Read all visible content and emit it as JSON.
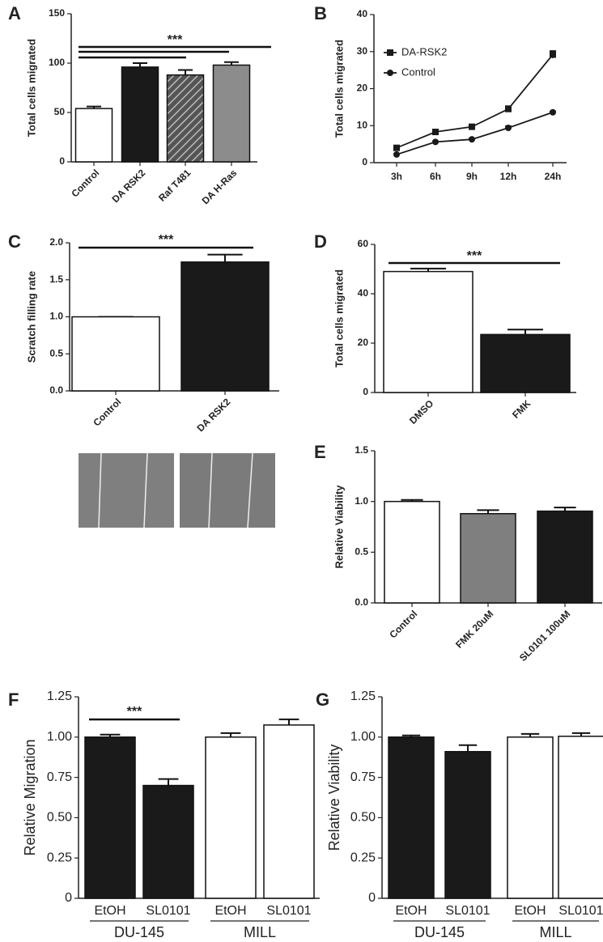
{
  "chart_data": [
    {
      "type": "bar",
      "label": "A",
      "ylabel": "Total cells migrated",
      "categories": [
        "Control",
        "DA RSK2",
        "Raf T481",
        "DA H-Ras"
      ],
      "values": [
        54,
        96,
        88,
        98
      ],
      "errors": [
        2,
        4,
        5,
        3
      ],
      "colors": [
        "#ffffff",
        "#1a1a1a",
        "#7f7f7f",
        "#8c8c8c"
      ],
      "hatch": [
        false,
        false,
        true,
        false
      ],
      "ylim": [
        0,
        150
      ],
      "yticks": [
        0,
        50,
        100,
        150
      ],
      "significance": {
        "label": "***",
        "pairs": [
          [
            0,
            3
          ],
          [
            0,
            2
          ],
          [
            0,
            1
          ]
        ]
      }
    },
    {
      "type": "line",
      "label": "B",
      "ylabel": "Total cells migrated",
      "categories": [
        "3h",
        "6h",
        "9h",
        "12h",
        "24h"
      ],
      "series": [
        {
          "name": "DA-RSK2",
          "color": "#1a1a1a",
          "marker": "square",
          "values": [
            4,
            8.3,
            9.7,
            14.5,
            29.2
          ],
          "errors": [
            0.4,
            0.3,
            0.5,
            0.8,
            1.0
          ]
        },
        {
          "name": "Control",
          "color": "#1a1a1a",
          "marker": "circle",
          "values": [
            2.2,
            5.6,
            6.3,
            9.4,
            13.6
          ],
          "errors": [
            0.2,
            0.2,
            0.3,
            0.5,
            0.3
          ]
        }
      ],
      "ylim": [
        0,
        40
      ],
      "yticks": [
        0,
        10,
        20,
        30,
        40
      ]
    },
    {
      "type": "bar",
      "label": "C",
      "ylabel": "Scratch filling rate",
      "categories": [
        "Control",
        "DA RSK2"
      ],
      "values": [
        1.0,
        1.74
      ],
      "errors": [
        0,
        0.1
      ],
      "colors": [
        "#ffffff",
        "#1a1a1a"
      ],
      "ylim": [
        0,
        2
      ],
      "yticks": [
        {
          "value": 0,
          "label": "0.0"
        },
        0.5,
        {
          "value": 1,
          "label": "1.0"
        },
        1.5,
        {
          "value": 2,
          "label": "2.0"
        }
      ],
      "significance": {
        "label": "***",
        "pairs": [
          [
            0,
            1
          ]
        ]
      }
    },
    {
      "type": "bar",
      "label": "D",
      "ylabel": "Total cells migrated",
      "categories": [
        "DMSO",
        "FMK"
      ],
      "values": [
        49,
        23.5
      ],
      "errors": [
        1.2,
        2
      ],
      "colors": [
        "#ffffff",
        "#1a1a1a"
      ],
      "ylim": [
        0,
        60
      ],
      "yticks": [
        0,
        20,
        40,
        60
      ],
      "significance": {
        "label": "***",
        "pairs": [
          [
            0,
            1
          ]
        ]
      }
    },
    {
      "type": "bar",
      "label": "E",
      "ylabel": "Relative Viability",
      "categories": [
        "Control",
        "FMK 20uM",
        "SL0101 100uM"
      ],
      "values": [
        1.0,
        0.88,
        0.905
      ],
      "errors": [
        0.015,
        0.035,
        0.035
      ],
      "colors": [
        "#ffffff",
        "#7f7f7f",
        "#1a1a1a"
      ],
      "ylim": [
        0,
        1.5
      ],
      "yticks": [
        {
          "value": 0,
          "label": "0.0"
        },
        0.5,
        {
          "value": 1,
          "label": "1.0"
        },
        1.5
      ]
    },
    {
      "type": "bar",
      "label": "F",
      "ylabel": "Relative Migration",
      "categories": [
        "EtOH",
        "SL0101",
        "EtOH",
        "SL0101"
      ],
      "groups": [
        "DU-145",
        "MILL"
      ],
      "values": [
        1.0,
        0.7,
        1.0,
        1.075
      ],
      "errors": [
        0.015,
        0.04,
        0.025,
        0.035
      ],
      "colors": [
        "#1a1a1a",
        "#1a1a1a",
        "#ffffff",
        "#ffffff"
      ],
      "ylim": [
        0,
        1.25
      ],
      "yticks": [
        0,
        0.25,
        {
          "value": 0.5,
          "label": "0.50"
        },
        0.75,
        {
          "value": 1,
          "label": "1.00"
        },
        1.25
      ],
      "significance": {
        "label": "***",
        "pairs": [
          [
            0,
            1
          ]
        ]
      }
    },
    {
      "type": "bar",
      "label": "G",
      "ylabel": "Relative Viability",
      "categories": [
        "EtOH",
        "SL0101",
        "EtOH",
        "SL0101"
      ],
      "groups": [
        "DU-145",
        "MILL"
      ],
      "values": [
        1.0,
        0.91,
        1.0,
        1.005
      ],
      "errors": [
        0.01,
        0.04,
        0.02,
        0.02
      ],
      "colors": [
        "#1a1a1a",
        "#1a1a1a",
        "#ffffff",
        "#ffffff"
      ],
      "ylim": [
        0,
        1.25
      ],
      "yticks": [
        0,
        0.25,
        {
          "value": 0.5,
          "label": "0.50"
        },
        0.75,
        {
          "value": 1,
          "label": "1.00"
        },
        1.25
      ]
    }
  ]
}
